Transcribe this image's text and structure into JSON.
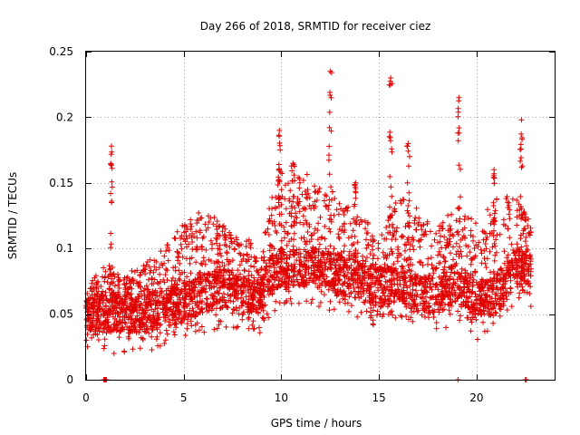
{
  "chart_data": {
    "type": "scatter",
    "title": "Day 266 of 2018, SRMTID for receiver ciez",
    "xlabel": "GPS time / hours",
    "ylabel": "SRMTID / TECUs",
    "xlim": [
      0,
      24
    ],
    "ylim": [
      0,
      0.25
    ],
    "x_ticks": [
      0,
      5,
      10,
      15,
      20
    ],
    "x_tick_labels": [
      "0",
      "5",
      "10",
      "15",
      "20"
    ],
    "y_ticks": [
      0,
      0.05,
      0.1,
      0.15,
      0.2,
      0.25
    ],
    "y_tick_labels": [
      "0",
      "0.05",
      "0.1",
      "0.15",
      "0.2",
      "0.25"
    ],
    "grid": true,
    "marker": "+",
    "color": "#e00000",
    "series": [
      {
        "name": "SRMTID",
        "x_range": [
          0,
          22.8
        ],
        "samples_per_hour": 160,
        "note": "dense scatter; baseline profile [hour, typical value], upper envelope and spike bursts",
        "baseline": [
          [
            0,
            0.05
          ],
          [
            1,
            0.05
          ],
          [
            2,
            0.05
          ],
          [
            3,
            0.05
          ],
          [
            4,
            0.055
          ],
          [
            5,
            0.06
          ],
          [
            6,
            0.065
          ],
          [
            7,
            0.07
          ],
          [
            8,
            0.065
          ],
          [
            9,
            0.065
          ],
          [
            9.5,
            0.08
          ],
          [
            10,
            0.085
          ],
          [
            11,
            0.085
          ],
          [
            12,
            0.085
          ],
          [
            13,
            0.08
          ],
          [
            14,
            0.075
          ],
          [
            15,
            0.07
          ],
          [
            16,
            0.075
          ],
          [
            17,
            0.065
          ],
          [
            18,
            0.065
          ],
          [
            19,
            0.075
          ],
          [
            20,
            0.06
          ],
          [
            21,
            0.065
          ],
          [
            22,
            0.085
          ],
          [
            22.8,
            0.08
          ]
        ],
        "envelope": [
          [
            0,
            0.07
          ],
          [
            1,
            0.09
          ],
          [
            2,
            0.08
          ],
          [
            3,
            0.09
          ],
          [
            4,
            0.1
          ],
          [
            5,
            0.12
          ],
          [
            6,
            0.13
          ],
          [
            7,
            0.12
          ],
          [
            8,
            0.11
          ],
          [
            9,
            0.1
          ],
          [
            9.5,
            0.14
          ],
          [
            10,
            0.16
          ],
          [
            11,
            0.16
          ],
          [
            12,
            0.15
          ],
          [
            13,
            0.14
          ],
          [
            14,
            0.13
          ],
          [
            15,
            0.11
          ],
          [
            16,
            0.14
          ],
          [
            17,
            0.13
          ],
          [
            18,
            0.12
          ],
          [
            19,
            0.13
          ],
          [
            20,
            0.12
          ],
          [
            21,
            0.14
          ],
          [
            22,
            0.14
          ],
          [
            22.8,
            0.12
          ]
        ],
        "spikes": [
          {
            "x": 1.3,
            "width": 0.1,
            "peak": 0.178
          },
          {
            "x": 9.9,
            "width": 0.1,
            "peak": 0.19
          },
          {
            "x": 10.6,
            "width": 0.2,
            "peak": 0.165
          },
          {
            "x": 12.5,
            "width": 0.15,
            "peak": 0.235
          },
          {
            "x": 13.8,
            "width": 0.1,
            "peak": 0.15
          },
          {
            "x": 15.6,
            "width": 0.15,
            "peak": 0.23
          },
          {
            "x": 16.5,
            "width": 0.15,
            "peak": 0.18
          },
          {
            "x": 19.1,
            "width": 0.15,
            "peak": 0.215
          },
          {
            "x": 20.9,
            "width": 0.1,
            "peak": 0.16
          },
          {
            "x": 22.3,
            "width": 0.15,
            "peak": 0.198
          }
        ],
        "zero_points": [
          0.9,
          0.95,
          1.0,
          1.05,
          19.05,
          22.5,
          22.55
        ]
      }
    ]
  }
}
